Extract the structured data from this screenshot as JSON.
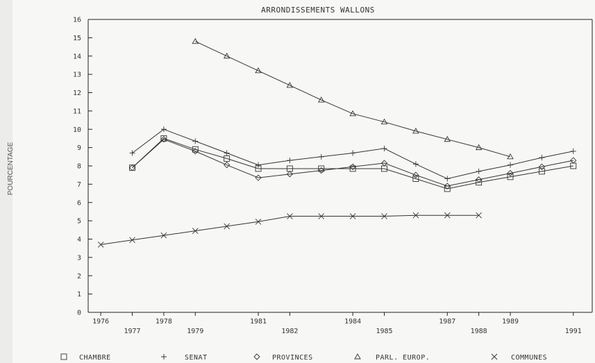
{
  "chart_data": {
    "type": "line",
    "title": "ARRONDISSEMENTS WALLONS",
    "xlabel": "",
    "ylabel": "POURCENTAGE",
    "ylim": [
      0,
      16
    ],
    "xlim": [
      1975.6,
      1991.6
    ],
    "yticks": [
      "0",
      "1",
      "2",
      "3",
      "4",
      "5",
      "6",
      "7",
      "8",
      "9",
      "10",
      "11",
      "12",
      "13",
      "14",
      "15",
      "16"
    ],
    "xticks_upper": [
      {
        "x": 1976,
        "label": "1976"
      },
      {
        "x": 1978,
        "label": "1978"
      },
      {
        "x": 1981,
        "label": "1981"
      },
      {
        "x": 1984,
        "label": "1984"
      },
      {
        "x": 1987,
        "label": "1987"
      },
      {
        "x": 1989,
        "label": "1989"
      }
    ],
    "xticks_lower": [
      {
        "x": 1977,
        "label": "1977"
      },
      {
        "x": 1979,
        "label": "1979"
      },
      {
        "x": 1982,
        "label": "1982"
      },
      {
        "x": 1985,
        "label": "1985"
      },
      {
        "x": 1988,
        "label": "1988"
      },
      {
        "x": 1991,
        "label": "1991"
      }
    ],
    "grid": false,
    "legend_placement": "bottom",
    "series": [
      {
        "name": "CHAMBRE",
        "marker": "square",
        "x": [
          1977,
          1978,
          1979,
          1980,
          1981,
          1982,
          1983,
          1984,
          1985,
          1986,
          1987,
          1988,
          1989,
          1990,
          1991
        ],
        "y": [
          7.9,
          9.5,
          8.9,
          8.4,
          7.85,
          7.85,
          7.85,
          7.85,
          7.85,
          7.3,
          6.75,
          7.1,
          7.4,
          7.7,
          8.0
        ]
      },
      {
        "name": "SENAT",
        "marker": "plus",
        "x": [
          1977,
          1978,
          1979,
          1980,
          1981,
          1982,
          1983,
          1984,
          1985,
          1986,
          1987,
          1988,
          1989,
          1990,
          1991
        ],
        "y": [
          8.7,
          10.0,
          9.35,
          8.7,
          8.05,
          8.3,
          8.5,
          8.7,
          8.95,
          8.1,
          7.3,
          7.7,
          8.05,
          8.45,
          8.8
        ]
      },
      {
        "name": "PROVINCES",
        "marker": "diamond",
        "x": [
          1977,
          1978,
          1979,
          1980,
          1981,
          1982,
          1983,
          1984,
          1985,
          1986,
          1987,
          1988,
          1989,
          1990,
          1991
        ],
        "y": [
          7.9,
          9.45,
          8.8,
          8.05,
          7.35,
          7.55,
          7.75,
          7.95,
          8.15,
          7.5,
          6.9,
          7.25,
          7.6,
          7.95,
          8.3
        ]
      },
      {
        "name": "PARL. EUROP.",
        "marker": "triangle",
        "x": [
          1979,
          1980,
          1981,
          1982,
          1983,
          1984,
          1985,
          1986,
          1987,
          1988,
          1989
        ],
        "y": [
          14.8,
          14.0,
          13.2,
          12.4,
          11.6,
          10.85,
          10.4,
          9.9,
          9.45,
          9.0,
          8.5
        ]
      },
      {
        "name": "COMMUNES",
        "marker": "x",
        "x": [
          1976,
          1977,
          1978,
          1979,
          1980,
          1981,
          1982,
          1983,
          1984,
          1985,
          1986,
          1987,
          1988
        ],
        "y": [
          3.7,
          3.95,
          4.2,
          4.45,
          4.7,
          4.95,
          5.25,
          5.25,
          5.25,
          5.25,
          5.3,
          5.3,
          5.3
        ]
      }
    ]
  }
}
